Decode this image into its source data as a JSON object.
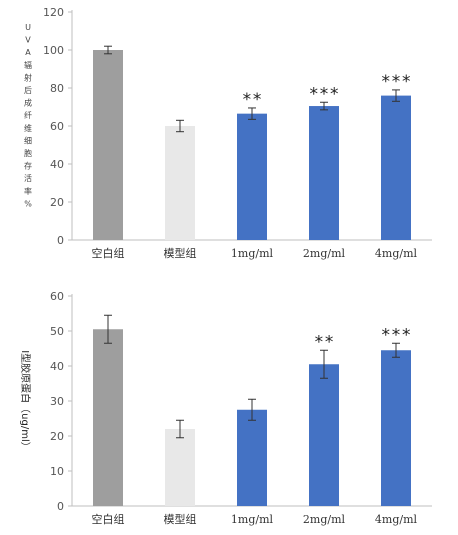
{
  "chart_data": [
    {
      "type": "bar",
      "categories": [
        "空白组",
        "模型组",
        "1mg/ml",
        "2mg/ml",
        "4mg/ml"
      ],
      "values": [
        100,
        60,
        66.5,
        70.5,
        76
      ],
      "errors": [
        2,
        3,
        3,
        2,
        3
      ],
      "significance": [
        "",
        "",
        "**",
        "***",
        "***"
      ],
      "colors": [
        "#9e9e9e",
        "#e8e8e8",
        "#4472c4",
        "#4472c4",
        "#4472c4"
      ],
      "ylabel": "UVA辐射后成纤维细胞存活率%",
      "ylim": [
        0,
        120
      ],
      "yticks": [
        0,
        20,
        40,
        60,
        80,
        100,
        120
      ],
      "grid": false
    },
    {
      "type": "bar",
      "categories": [
        "空白组",
        "模型组",
        "1mg/ml",
        "2mg/ml",
        "4mg/ml"
      ],
      "values": [
        50.5,
        22,
        27.5,
        40.5,
        44.5
      ],
      "errors": [
        4,
        2.5,
        3,
        4,
        2
      ],
      "significance": [
        "",
        "",
        "",
        "**",
        "***"
      ],
      "colors": [
        "#9e9e9e",
        "#e8e8e8",
        "#4472c4",
        "#4472c4",
        "#4472c4"
      ],
      "ylabel": "I型胶原蛋白（ug/ml）",
      "ylim": [
        0,
        60
      ],
      "yticks": [
        0,
        10,
        20,
        30,
        40,
        50,
        60
      ],
      "grid": false
    }
  ]
}
